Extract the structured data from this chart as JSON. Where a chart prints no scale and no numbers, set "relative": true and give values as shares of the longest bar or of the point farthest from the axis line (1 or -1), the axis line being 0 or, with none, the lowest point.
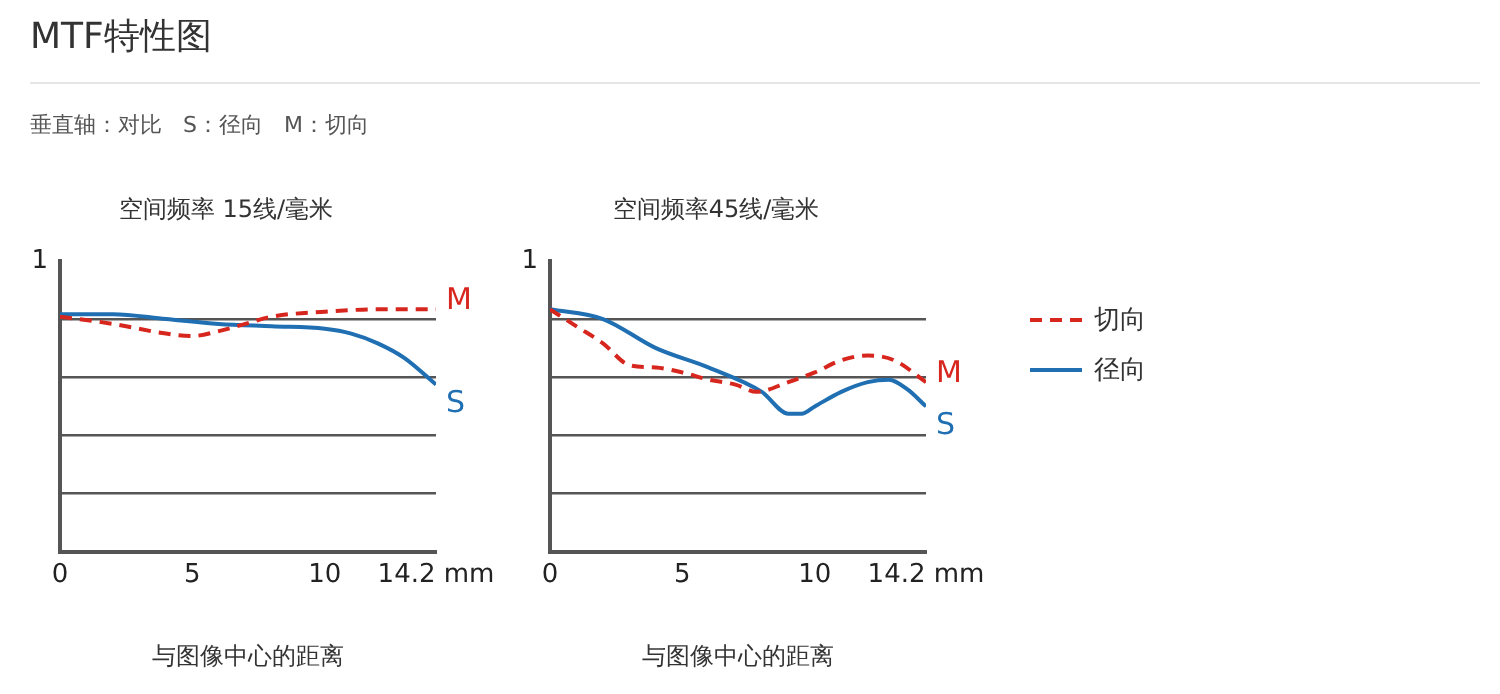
{
  "chart_data": [
    {
      "type": "other",
      "title": "MTF特性图",
      "subtitle": "垂直轴：对比   S：径向   M：切向"
    },
    {
      "type": "line",
      "relative": true,
      "title": "空间频率 15线/毫米",
      "xlabel": "与图像中心的距离",
      "xlim": [
        0,
        14.2
      ],
      "xticks": [
        0,
        5,
        10,
        {
          "value": 14.2,
          "label": "14.2 mm"
        }
      ],
      "grid": "y",
      "marker": "none",
      "series": [
        {
          "color": "#d7261e",
          "line_style": "dashed",
          "x": [
            0,
            2,
            4,
            5,
            6,
            7,
            8,
            10,
            12,
            14.2
          ],
          "values": [
            0.97,
            0.94,
            0.9,
            0.89,
            0.91,
            0.94,
            0.97,
            0.99,
            1,
            1
          ]
        },
        {
          "color": "#1f6fb2",
          "line_style": "solid",
          "x": [
            0,
            2,
            4,
            6,
            8,
            10,
            11,
            12,
            13,
            14.2
          ],
          "values": [
            0.98,
            0.98,
            0.96,
            0.94,
            0.93,
            0.92,
            0.9,
            0.86,
            0.8,
            0.69
          ]
        }
      ],
      "annotations": [
        "1",
        "M",
        "S"
      ]
    },
    {
      "type": "line",
      "relative": true,
      "title": "空间频率45线/毫米",
      "xlabel": "与图像中心的距离",
      "xlim": [
        0,
        14.2
      ],
      "xticks": [
        0,
        5,
        10,
        {
          "value": 14.2,
          "label": "14.2 mm"
        }
      ],
      "grid": "y",
      "legend": "right",
      "marker": "none",
      "series": [
        {
          "name": "切向",
          "color": "#d7261e",
          "line_style": "dashed",
          "x": [
            0,
            1,
            2,
            3,
            4,
            5,
            6,
            7,
            7.8,
            9,
            10,
            11,
            12,
            13,
            14.2
          ],
          "values": [
            1,
            0.93,
            0.86,
            0.77,
            0.76,
            0.74,
            0.71,
            0.69,
            0.66,
            0.7,
            0.74,
            0.79,
            0.81,
            0.79,
            0.7
          ]
        },
        {
          "name": "径向",
          "color": "#1f6fb2",
          "line_style": "solid",
          "x": [
            0,
            2,
            4,
            6,
            8,
            9,
            9.5,
            10,
            11,
            12,
            12.8,
            13.5,
            14.2
          ],
          "values": [
            1,
            0.96,
            0.84,
            0.76,
            0.66,
            0.57,
            0.57,
            0.6,
            0.66,
            0.7,
            0.71,
            0.67,
            0.6
          ]
        }
      ],
      "annotations": [
        "1",
        "M",
        "S"
      ]
    }
  ]
}
